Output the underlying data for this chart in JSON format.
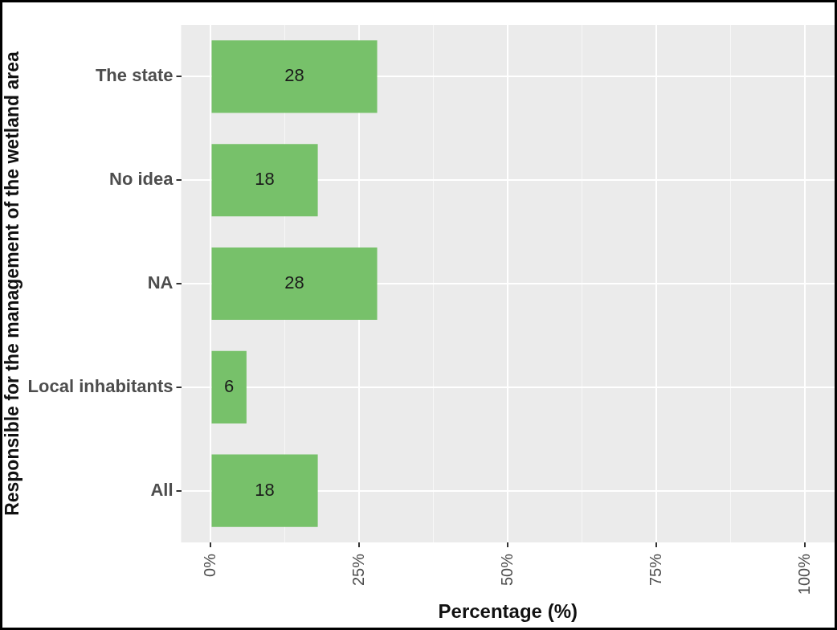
{
  "chart_data": {
    "type": "bar",
    "orientation": "horizontal",
    "xlabel": "Percentage (%)",
    "ylabel": "Responsible for the management of the wetland area",
    "categories": [
      "The state",
      "No idea",
      "NA",
      "Local inhabitants",
      "All"
    ],
    "values": [
      28,
      18,
      28,
      6,
      18
    ],
    "color": "#77c16a",
    "data_labels": true,
    "grid": true,
    "legend": false,
    "xlim": [
      -5,
      105
    ],
    "xticks": [
      {
        "value": 0,
        "label": "0%"
      },
      {
        "value": 12.5,
        "label": null
      },
      {
        "value": 25,
        "label": "25%"
      },
      {
        "value": 37.5,
        "label": null
      },
      {
        "value": 50,
        "label": "50%"
      },
      {
        "value": 62.5,
        "label": null
      },
      {
        "value": 75,
        "label": "75%"
      },
      {
        "value": 87.5,
        "label": null
      },
      {
        "value": 100,
        "label": "100%"
      }
    ]
  }
}
